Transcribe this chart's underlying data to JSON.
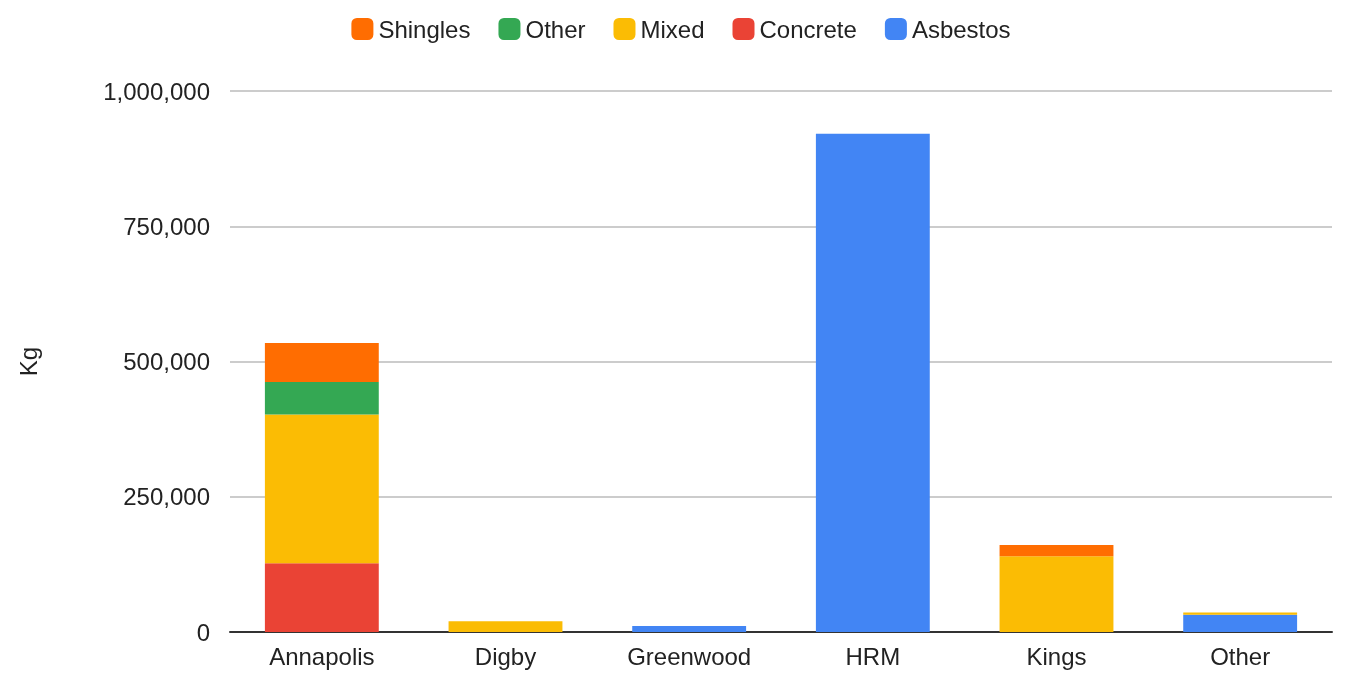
{
  "chart_data": {
    "type": "bar",
    "stacked": true,
    "ylabel": "Kg",
    "categories": [
      "Annapolis",
      "Digby",
      "Greenwood",
      "HRM",
      "Kings",
      "Other"
    ],
    "series": [
      {
        "name": "Asbestos",
        "color": "#4285f4",
        "values": [
          null,
          null,
          11000,
          921000,
          null,
          32000
        ]
      },
      {
        "name": "Concrete",
        "color": "#ea4335",
        "values": [
          127000,
          null,
          null,
          null,
          null,
          null
        ]
      },
      {
        "name": "Mixed",
        "color": "#fbbc04",
        "values": [
          275000,
          20000,
          null,
          null,
          140000,
          4000
        ]
      },
      {
        "name": "Other",
        "color": "#34a853",
        "values": [
          60000,
          null,
          null,
          null,
          null,
          null
        ]
      },
      {
        "name": "Shingles",
        "color": "#ff6d01",
        "values": [
          72000,
          null,
          null,
          null,
          21000,
          null
        ]
      }
    ],
    "ylim": [
      0,
      1000000
    ],
    "yticks": [
      0,
      {
        "value": 250000,
        "label": "250,000"
      },
      {
        "value": 500000,
        "label": "500,000"
      },
      {
        "value": 750000,
        "label": "750,000"
      },
      {
        "value": 1000000,
        "label": "1,000,000"
      }
    ],
    "grid": "y",
    "legend": "top"
  }
}
